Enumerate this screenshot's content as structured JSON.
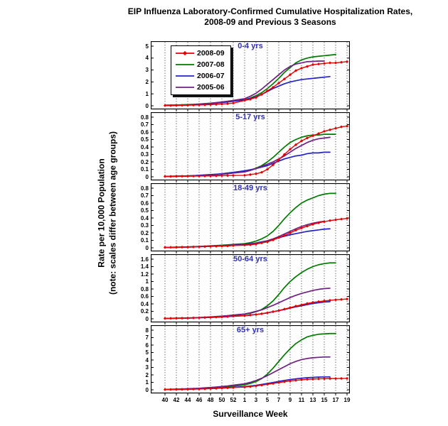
{
  "figure": {
    "title_line1": "EIP Influenza Laboratory-Confirmed Cumulative Hospitalization Rates,",
    "title_line2": "2008-09 and Previous 3 Seasons",
    "ylabel_line1": "Rate per 10,000 Population",
    "ylabel_line2": "(note: scales differ between age groups)",
    "xlabel": "Surveillance Week"
  },
  "chart_data": {
    "type": "line",
    "x_tick_labels": [
      "40",
      "42",
      "44",
      "46",
      "48",
      "50",
      "52",
      "1",
      "3",
      "5",
      "7",
      "9",
      "11",
      "13",
      "15",
      "17",
      "19"
    ],
    "x_weeks": [
      "40",
      "41",
      "42",
      "43",
      "44",
      "45",
      "46",
      "47",
      "48",
      "49",
      "50",
      "51",
      "52",
      "1",
      "2",
      "3",
      "4",
      "5",
      "6",
      "7",
      "8",
      "9",
      "10",
      "11",
      "12",
      "13",
      "14",
      "15",
      "16",
      "17",
      "18",
      "19"
    ],
    "grid": "vertical-dotted",
    "legend_position": "top-left-first-panel",
    "legend": [
      {
        "name": "2008-09",
        "color": "#e60000",
        "marker": true
      },
      {
        "name": "2007-08",
        "color": "#007a00",
        "marker": false
      },
      {
        "name": "2006-07",
        "color": "#2222cc",
        "marker": false
      },
      {
        "name": "2005-06",
        "color": "#702080",
        "marker": false
      }
    ],
    "panels": [
      {
        "title": "0-4 yrs",
        "ymax": 5,
        "y_ticks": [
          "0",
          "1",
          "2",
          "3",
          "4",
          "5"
        ],
        "series": [
          {
            "name": "2007-08",
            "values": [
              0.05,
              0.06,
              0.07,
              0.08,
              0.1,
              0.12,
              0.15,
              0.18,
              0.22,
              0.26,
              0.3,
              0.35,
              0.4,
              0.5,
              0.65,
              0.85,
              1.1,
              1.45,
              1.85,
              2.3,
              2.8,
              3.2,
              3.6,
              3.85,
              4.0,
              4.1,
              4.15,
              4.2,
              4.25,
              4.3,
              null,
              null
            ]
          },
          {
            "name": "2006-07",
            "values": [
              0.02,
              0.03,
              0.04,
              0.05,
              0.07,
              0.09,
              0.12,
              0.15,
              0.18,
              0.22,
              0.27,
              0.32,
              0.38,
              0.5,
              0.62,
              0.75,
              0.95,
              1.2,
              1.45,
              1.65,
              1.85,
              2.0,
              2.1,
              2.2,
              2.25,
              2.3,
              2.35,
              2.4,
              2.45,
              null,
              null,
              null
            ]
          },
          {
            "name": "2005-06",
            "values": [
              0.03,
              0.04,
              0.05,
              0.06,
              0.08,
              0.1,
              0.13,
              0.17,
              0.21,
              0.26,
              0.32,
              0.38,
              0.45,
              0.6,
              0.8,
              1.05,
              1.4,
              1.8,
              2.2,
              2.6,
              3.0,
              3.3,
              3.5,
              3.6,
              3.7,
              3.72,
              3.75,
              3.75,
              null,
              null,
              null,
              null
            ]
          },
          {
            "name": "2008-09",
            "values": [
              0.02,
              0.02,
              0.03,
              0.04,
              0.05,
              0.06,
              0.07,
              0.08,
              0.1,
              0.12,
              0.15,
              0.18,
              0.22,
              0.45,
              0.55,
              0.7,
              0.95,
              1.25,
              1.55,
              1.9,
              2.25,
              2.6,
              2.95,
              3.15,
              3.3,
              3.45,
              3.5,
              3.55,
              3.6,
              3.6,
              3.65,
              3.7
            ]
          }
        ]
      },
      {
        "title": "5-17 yrs",
        "ymax": 0.8,
        "y_ticks": [
          "0",
          "0.1",
          "0.2",
          "0.3",
          "0.4",
          "0.5",
          "0.6",
          "0.7",
          "0.8"
        ],
        "series": [
          {
            "name": "2007-08",
            "values": [
              0.005,
              0.007,
              0.008,
              0.01,
              0.012,
              0.015,
              0.018,
              0.022,
              0.027,
              0.032,
              0.04,
              0.048,
              0.055,
              0.07,
              0.09,
              0.115,
              0.15,
              0.2,
              0.26,
              0.33,
              0.4,
              0.46,
              0.5,
              0.53,
              0.55,
              0.56,
              0.56,
              0.57,
              0.57,
              0.57,
              null,
              null
            ]
          },
          {
            "name": "2006-07",
            "values": [
              0.005,
              0.006,
              0.008,
              0.01,
              0.012,
              0.015,
              0.02,
              0.025,
              0.03,
              0.035,
              0.04,
              0.05,
              0.06,
              0.08,
              0.095,
              0.11,
              0.13,
              0.15,
              0.18,
              0.21,
              0.24,
              0.26,
              0.28,
              0.29,
              0.31,
              0.32,
              0.32,
              0.33,
              0.33,
              null,
              null,
              null
            ]
          },
          {
            "name": "2005-06",
            "values": [
              0.004,
              0.005,
              0.006,
              0.008,
              0.01,
              0.012,
              0.015,
              0.018,
              0.022,
              0.027,
              0.033,
              0.04,
              0.05,
              0.065,
              0.085,
              0.11,
              0.14,
              0.17,
              0.2,
              0.24,
              0.28,
              0.33,
              0.38,
              0.42,
              0.46,
              0.49,
              0.51,
              0.52,
              0.53,
              null,
              null,
              null
            ]
          },
          {
            "name": "2008-09",
            "values": [
              0.005,
              0.005,
              0.006,
              0.007,
              0.008,
              0.009,
              0.01,
              0.011,
              0.012,
              0.013,
              0.015,
              0.016,
              0.018,
              0.02,
              0.03,
              0.04,
              0.06,
              0.1,
              0.16,
              0.23,
              0.3,
              0.37,
              0.43,
              0.48,
              0.52,
              0.55,
              0.58,
              0.61,
              0.63,
              0.65,
              0.67,
              0.68
            ]
          }
        ]
      },
      {
        "title": "18-49 yrs",
        "ymax": 0.8,
        "y_ticks": [
          "0",
          "0.1",
          "0.2",
          "0.3",
          "0.4",
          "0.5",
          "0.6",
          "0.7",
          "0.8"
        ],
        "series": [
          {
            "name": "2007-08",
            "values": [
              0.005,
              0.006,
              0.008,
              0.01,
              0.012,
              0.015,
              0.018,
              0.022,
              0.026,
              0.03,
              0.035,
              0.04,
              0.045,
              0.055,
              0.07,
              0.09,
              0.12,
              0.16,
              0.22,
              0.3,
              0.39,
              0.47,
              0.54,
              0.6,
              0.64,
              0.67,
              0.7,
              0.72,
              0.73,
              0.73,
              null,
              null
            ]
          },
          {
            "name": "2006-07",
            "values": [
              0.005,
              0.006,
              0.007,
              0.009,
              0.011,
              0.013,
              0.016,
              0.019,
              0.022,
              0.026,
              0.03,
              0.034,
              0.038,
              0.045,
              0.055,
              0.065,
              0.08,
              0.095,
              0.115,
              0.135,
              0.155,
              0.175,
              0.19,
              0.205,
              0.22,
              0.23,
              0.24,
              0.25,
              0.255,
              null,
              null,
              null
            ]
          },
          {
            "name": "2005-06",
            "values": [
              0.004,
              0.005,
              0.006,
              0.008,
              0.01,
              0.012,
              0.015,
              0.018,
              0.021,
              0.025,
              0.028,
              0.032,
              0.036,
              0.042,
              0.05,
              0.06,
              0.075,
              0.095,
              0.12,
              0.15,
              0.185,
              0.22,
              0.255,
              0.285,
              0.31,
              0.33,
              0.345,
              0.355,
              null,
              null,
              null,
              null
            ]
          },
          {
            "name": "2008-09",
            "values": [
              0.005,
              0.006,
              0.007,
              0.008,
              0.01,
              0.012,
              0.014,
              0.016,
              0.018,
              0.02,
              0.022,
              0.025,
              0.03,
              0.035,
              0.04,
              0.05,
              0.065,
              0.08,
              0.105,
              0.135,
              0.165,
              0.2,
              0.235,
              0.265,
              0.29,
              0.315,
              0.335,
              0.35,
              0.365,
              0.375,
              0.385,
              0.395
            ]
          }
        ]
      },
      {
        "title": "50-64 yrs",
        "ymax": 1.6,
        "y_ticks": [
          "0",
          "0.2",
          "0.4",
          "0.6",
          "0.8",
          "1",
          "1.2",
          "1.4",
          "1.6"
        ],
        "series": [
          {
            "name": "2007-08",
            "values": [
              0.01,
              0.012,
              0.015,
              0.018,
              0.022,
              0.027,
              0.032,
              0.04,
              0.048,
              0.057,
              0.068,
              0.08,
              0.095,
              0.12,
              0.15,
              0.19,
              0.25,
              0.35,
              0.48,
              0.65,
              0.84,
              1.0,
              1.13,
              1.24,
              1.33,
              1.4,
              1.45,
              1.48,
              1.5,
              1.5,
              null,
              null
            ]
          },
          {
            "name": "2006-07",
            "values": [
              0.01,
              0.012,
              0.014,
              0.016,
              0.019,
              0.023,
              0.027,
              0.032,
              0.037,
              0.043,
              0.05,
              0.058,
              0.068,
              0.082,
              0.098,
              0.115,
              0.135,
              0.16,
              0.19,
              0.22,
              0.25,
              0.29,
              0.32,
              0.35,
              0.38,
              0.41,
              0.43,
              0.45,
              0.46,
              null,
              null,
              null
            ]
          },
          {
            "name": "2005-06",
            "values": [
              0.01,
              0.012,
              0.015,
              0.018,
              0.022,
              0.027,
              0.033,
              0.04,
              0.05,
              0.06,
              0.072,
              0.085,
              0.1,
              0.13,
              0.16,
              0.2,
              0.24,
              0.3,
              0.36,
              0.43,
              0.5,
              0.57,
              0.63,
              0.68,
              0.72,
              0.76,
              0.79,
              0.81,
              0.82,
              null,
              null,
              null
            ]
          },
          {
            "name": "2008-09",
            "values": [
              0.01,
              0.012,
              0.014,
              0.017,
              0.02,
              0.024,
              0.028,
              0.033,
              0.038,
              0.044,
              0.05,
              0.06,
              0.07,
              0.085,
              0.1,
              0.115,
              0.135,
              0.16,
              0.19,
              0.22,
              0.26,
              0.3,
              0.34,
              0.375,
              0.41,
              0.44,
              0.46,
              0.48,
              0.495,
              0.51,
              0.52,
              0.53
            ]
          }
        ]
      },
      {
        "title": "65+ yrs",
        "ymax": 8,
        "y_ticks": [
          "0",
          "1",
          "2",
          "3",
          "4",
          "5",
          "6",
          "7",
          "8"
        ],
        "series": [
          {
            "name": "2007-08",
            "values": [
              0.05,
              0.06,
              0.07,
              0.09,
              0.11,
              0.13,
              0.16,
              0.2,
              0.24,
              0.29,
              0.35,
              0.42,
              0.5,
              0.65,
              0.85,
              1.1,
              1.5,
              2.1,
              2.9,
              3.8,
              4.7,
              5.5,
              6.2,
              6.7,
              7.1,
              7.3,
              7.45,
              7.5,
              7.55,
              7.55,
              null,
              null
            ]
          },
          {
            "name": "2006-07",
            "values": [
              0.03,
              0.04,
              0.05,
              0.06,
              0.08,
              0.1,
              0.12,
              0.15,
              0.18,
              0.21,
              0.25,
              0.29,
              0.34,
              0.42,
              0.5,
              0.6,
              0.72,
              0.85,
              0.98,
              1.12,
              1.25,
              1.37,
              1.47,
              1.55,
              1.62,
              1.67,
              1.7,
              1.72,
              1.73,
              null,
              null,
              null
            ]
          },
          {
            "name": "2005-06",
            "values": [
              0.05,
              0.07,
              0.09,
              0.11,
              0.14,
              0.17,
              0.21,
              0.26,
              0.31,
              0.37,
              0.44,
              0.52,
              0.62,
              0.8,
              1.0,
              1.25,
              1.55,
              1.9,
              2.3,
              2.7,
              3.1,
              3.5,
              3.8,
              4.05,
              4.2,
              4.3,
              4.35,
              4.4,
              4.4,
              null,
              null,
              null
            ]
          },
          {
            "name": "2008-09",
            "values": [
              0.03,
              0.04,
              0.05,
              0.06,
              0.07,
              0.09,
              0.11,
              0.13,
              0.16,
              0.19,
              0.22,
              0.26,
              0.3,
              0.36,
              0.43,
              0.52,
              0.62,
              0.73,
              0.85,
              0.97,
              1.08,
              1.18,
              1.27,
              1.34,
              1.4,
              1.44,
              1.47,
              1.49,
              1.5,
              1.51,
              1.52,
              1.53
            ]
          }
        ]
      }
    ]
  }
}
